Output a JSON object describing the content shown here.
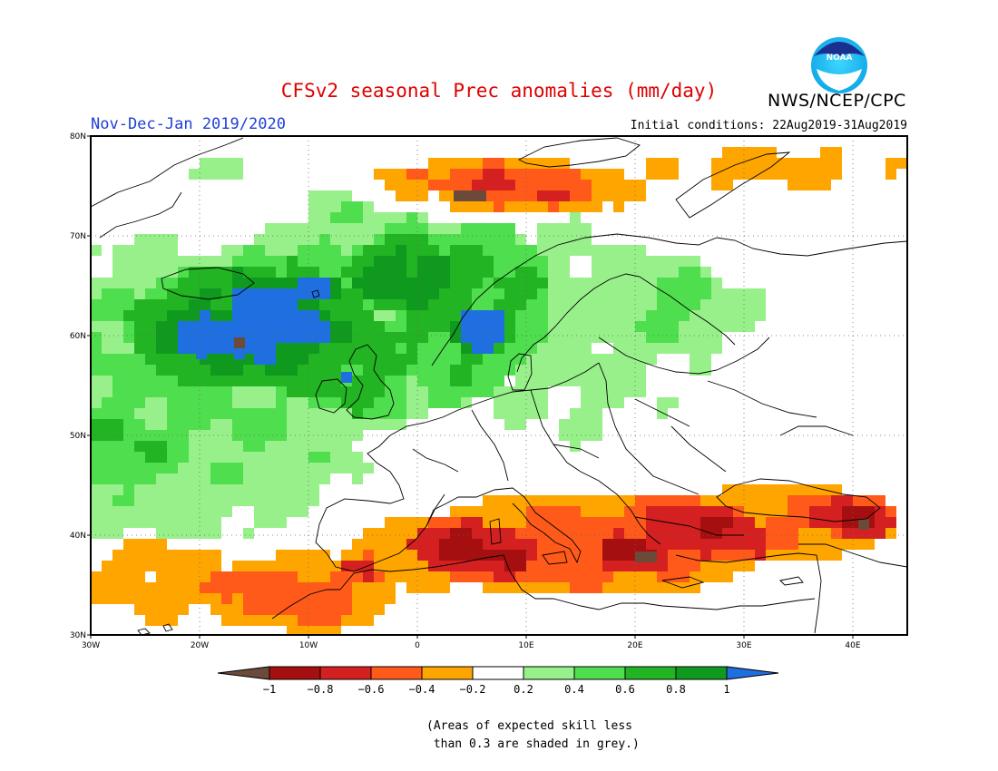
{
  "header": {
    "title": "CFSv2 seasonal Prec anomalies (mm/day)",
    "agency": "NWS/NCEP/CPC",
    "logo_text": "NOAA",
    "period": "Nov-Dec-Jan 2019/2020",
    "initial_conditions": "Initial conditions: 22Aug2019-31Aug2019"
  },
  "map": {
    "lon_ticks": [
      "30W",
      "20W",
      "10W",
      "0",
      "10E",
      "20E",
      "30E",
      "40E"
    ],
    "lat_ticks": [
      "80N",
      "70N",
      "60N",
      "50N",
      "40N",
      "30N"
    ],
    "extent": {
      "lon": [
        -30,
        45
      ],
      "lat": [
        30,
        80
      ]
    }
  },
  "colorbar": {
    "labels": [
      "−1",
      "−0.8",
      "−0.6",
      "−0.4",
      "−0.2",
      "0.2",
      "0.4",
      "0.6",
      "0.8",
      "1"
    ],
    "colors": [
      "#6b4a3a",
      "#a50f0f",
      "#d42020",
      "#ff5a1a",
      "#ffa500",
      "#ffffff",
      "#98f08a",
      "#4ede4e",
      "#22b422",
      "#0f9a1f",
      "#1f6fe0"
    ]
  },
  "note": "(Areas of expected skill less\n than 0.3 are shaded in grey.)"
}
